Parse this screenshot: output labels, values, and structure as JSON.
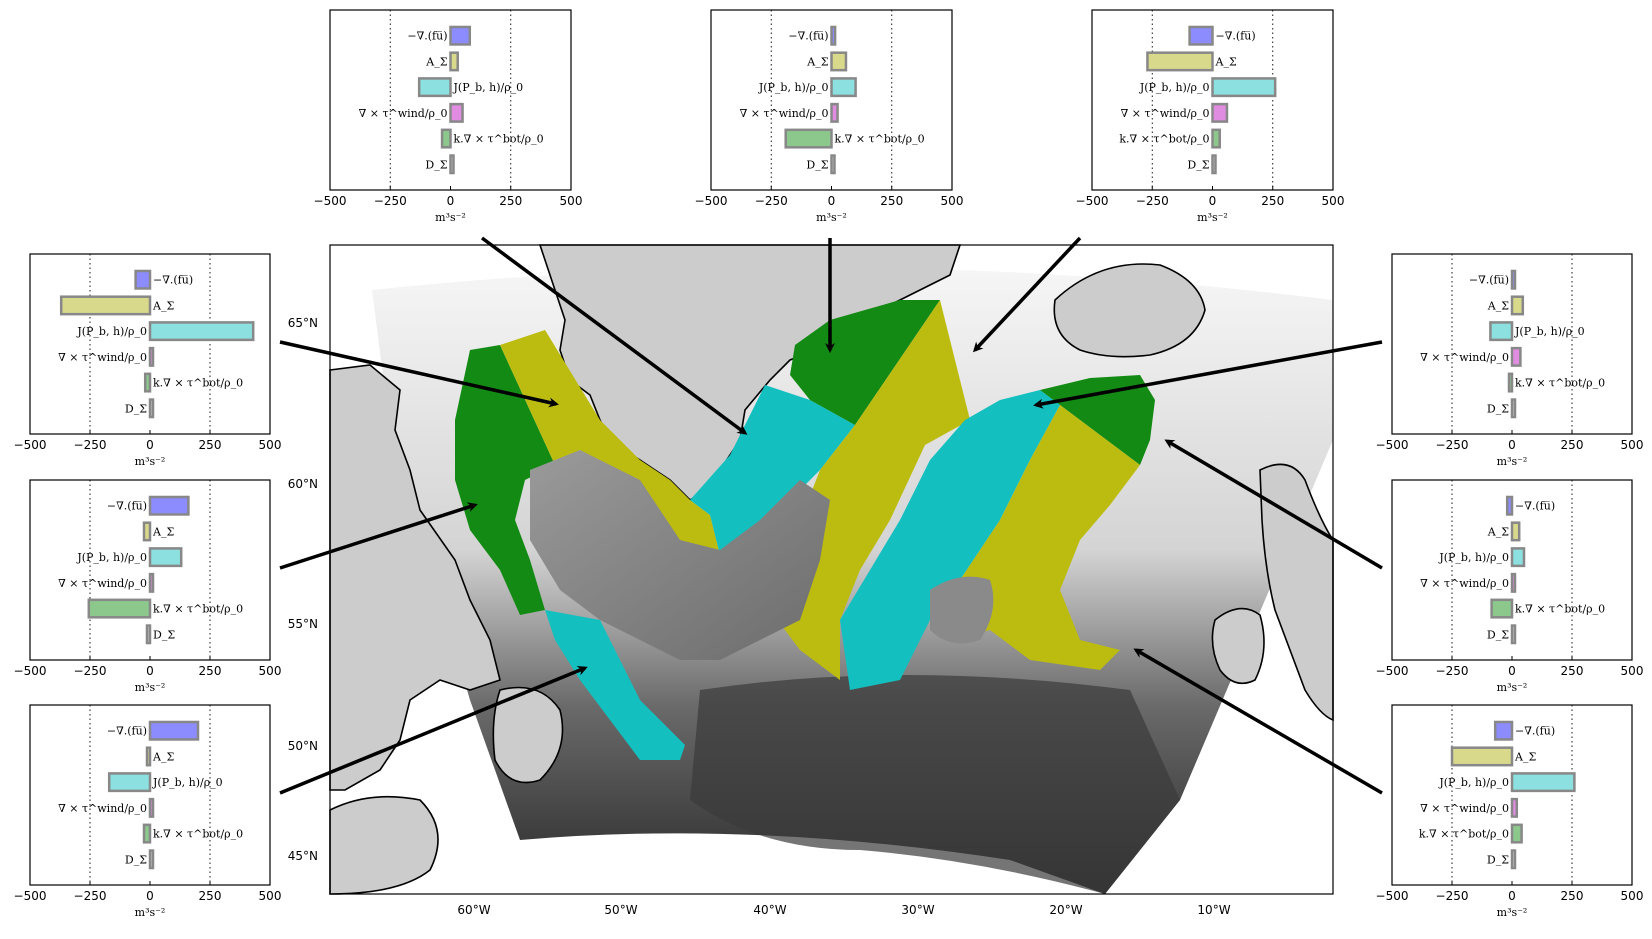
{
  "map": {
    "lat_labels": [
      "65°N",
      "60°N",
      "55°N",
      "50°N",
      "45°N"
    ],
    "lon_labels": [
      "60°W",
      "50°W",
      "40°W",
      "30°W",
      "20°W",
      "10°W"
    ],
    "colors": {
      "land": "#cccccc",
      "green": "#138a13",
      "yellow": "#bcbc10",
      "cyan": "#14bfbf",
      "ocean_light": "#f2f2f2",
      "ocean_deep": "#2e2e2e"
    }
  },
  "chart_common": {
    "term_labels": [
      "−∇.(fu̅)",
      "A_Σ",
      "J(P_b, h)/ρ_0",
      "∇ × τ^wind/ρ_0",
      "k.∇ × τ^bot/ρ_0",
      "D_Σ"
    ],
    "xticks": [
      "−500",
      "−250",
      "0",
      "250",
      "500"
    ],
    "xlabel": "m³s⁻²",
    "colors": [
      "#8c8cff",
      "#d9d98c",
      "#8ce0e0",
      "#e08ce0",
      "#8cc88c",
      "#cccccc"
    ]
  },
  "chart_data": [
    {
      "type": "bar",
      "orientation": "horizontal",
      "panel": "top-left",
      "categories": [
        "−∇.(fu̅)",
        "A_Σ",
        "J(P_b, h)/ρ_0",
        "∇ × τ^wind/ρ_0",
        "k.∇ × τ^bot/ρ_0",
        "D_Σ"
      ],
      "values": [
        80,
        30,
        -130,
        50,
        -35,
        5
      ],
      "xlim": [
        -500,
        500
      ],
      "xlabel": "m³s⁻²"
    },
    {
      "type": "bar",
      "orientation": "horizontal",
      "panel": "top-center",
      "categories": [
        "−∇.(fu̅)",
        "A_Σ",
        "J(P_b, h)/ρ_0",
        "∇ × τ^wind/ρ_0",
        "k.∇ × τ^bot/ρ_0",
        "D_Σ"
      ],
      "values": [
        15,
        60,
        100,
        25,
        -190,
        5
      ],
      "xlim": [
        -500,
        500
      ],
      "xlabel": "m³s⁻²"
    },
    {
      "type": "bar",
      "orientation": "horizontal",
      "panel": "top-right",
      "categories": [
        "−∇.(fu̅)",
        "A_Σ",
        "J(P_b, h)/ρ_0",
        "∇ × τ^wind/ρ_0",
        "k.∇ × τ^bot/ρ_0",
        "D_Σ"
      ],
      "values": [
        -95,
        -270,
        260,
        60,
        30,
        5
      ],
      "xlim": [
        -500,
        500
      ],
      "xlabel": "m³s⁻²"
    },
    {
      "type": "bar",
      "orientation": "horizontal",
      "panel": "left-1",
      "categories": [
        "−∇.(fu̅)",
        "A_Σ",
        "J(P_b, h)/ρ_0",
        "∇ × τ^wind/ρ_0",
        "k.∇ × τ^bot/ρ_0",
        "D_Σ"
      ],
      "values": [
        -60,
        -370,
        430,
        10,
        -20,
        5
      ],
      "xlim": [
        -500,
        500
      ],
      "xlabel": "m³s⁻²"
    },
    {
      "type": "bar",
      "orientation": "horizontal",
      "panel": "left-2",
      "categories": [
        "−∇.(fu̅)",
        "A_Σ",
        "J(P_b, h)/ρ_0",
        "∇ × τ^wind/ρ_0",
        "k.∇ × τ^bot/ρ_0",
        "D_Σ"
      ],
      "values": [
        160,
        -25,
        130,
        10,
        -255,
        -5
      ],
      "xlim": [
        -500,
        500
      ],
      "xlabel": "m³s⁻²"
    },
    {
      "type": "bar",
      "orientation": "horizontal",
      "panel": "left-3",
      "categories": [
        "−∇.(fu̅)",
        "A_Σ",
        "J(P_b, h)/ρ_0",
        "∇ × τ^wind/ρ_0",
        "k.∇ × τ^bot/ρ_0",
        "D_Σ"
      ],
      "values": [
        200,
        -10,
        -170,
        10,
        -25,
        5
      ],
      "xlim": [
        -500,
        500
      ],
      "xlabel": "m³s⁻²"
    },
    {
      "type": "bar",
      "orientation": "horizontal",
      "panel": "right-1",
      "categories": [
        "−∇.(fu̅)",
        "A_Σ",
        "J(P_b, h)/ρ_0",
        "∇ × τ^wind/ρ_0",
        "k.∇ × τ^bot/ρ_0",
        "D_Σ"
      ],
      "values": [
        5,
        45,
        -90,
        35,
        -10,
        5
      ],
      "xlim": [
        -500,
        500
      ],
      "xlabel": "m³s⁻²"
    },
    {
      "type": "bar",
      "orientation": "horizontal",
      "panel": "right-2",
      "categories": [
        "−∇.(fu̅)",
        "A_Σ",
        "J(P_b, h)/ρ_0",
        "∇ × τ^wind/ρ_0",
        "k.∇ × τ^bot/ρ_0",
        "D_Σ"
      ],
      "values": [
        -20,
        30,
        50,
        10,
        -85,
        5
      ],
      "xlim": [
        -500,
        500
      ],
      "xlabel": "m³s⁻²"
    },
    {
      "type": "bar",
      "orientation": "horizontal",
      "panel": "right-3",
      "categories": [
        "−∇.(fu̅)",
        "A_Σ",
        "J(P_b, h)/ρ_0",
        "∇ × τ^wind/ρ_0",
        "k.∇ × τ^bot/ρ_0",
        "D_Σ"
      ],
      "values": [
        -70,
        -250,
        260,
        20,
        40,
        5
      ],
      "xlim": [
        -500,
        500
      ],
      "xlabel": "m³s⁻²"
    }
  ]
}
